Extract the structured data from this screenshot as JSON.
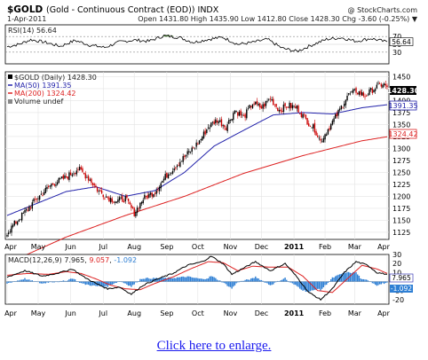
{
  "header": {
    "symbol": "$GOLD",
    "description": "(Gold - Continuous Contract (EOD)) INDX",
    "watermark": "@ StockCharts.com",
    "date": "1-Apr-2011",
    "quote": "Open 1431.80  High 1435.90  Low 1412.80  Close 1428.30  Chg -3.60 (-0.25%) ▼"
  },
  "link": {
    "text": "Click here to enlarge."
  },
  "colors": {
    "up": "#000000",
    "down": "#cc0000",
    "ma50": "#2222aa",
    "ma200": "#dd2222",
    "volume": "#888888",
    "rsi_fill": "#4f8a3a",
    "hist": "#2e7fd4",
    "signal": "#dd2222"
  },
  "chart_data": [
    {
      "type": "line",
      "panel": "rsi",
      "label": "RSI(14) 56.64",
      "ylim": [
        0,
        100
      ],
      "yticks": [
        "70",
        "50",
        "30"
      ],
      "levels": [
        70,
        30
      ],
      "last_value": "56.64",
      "series": [
        {
          "name": "RSI(14)",
          "x_index": [
            0,
            8,
            16,
            26,
            36,
            46,
            56,
            66,
            76,
            86,
            96,
            106,
            116,
            126,
            136,
            146,
            156,
            166,
            176,
            186,
            196,
            206,
            216,
            226,
            236,
            246,
            256
          ],
          "values": [
            44,
            50,
            62,
            55,
            45,
            60,
            48,
            42,
            56,
            61,
            58,
            72,
            68,
            55,
            63,
            68,
            50,
            55,
            63,
            40,
            32,
            48,
            63,
            67,
            58,
            65,
            56.64
          ]
        }
      ]
    },
    {
      "type": "candlestick",
      "panel": "price",
      "legend": [
        {
          "name": "$GOLD (Daily)",
          "value": "1428.30"
        },
        {
          "name": "MA(50)",
          "value": "1391.35"
        },
        {
          "name": "MA(200)",
          "value": "1324.42"
        },
        {
          "name": "Volume undef",
          "value": ""
        }
      ],
      "ylim": [
        1110,
        1460
      ],
      "yticks": [
        1125,
        1150,
        1175,
        1200,
        1225,
        1250,
        1275,
        1300,
        1325,
        1350,
        1375,
        1400,
        1425,
        1450
      ],
      "xticks": [
        {
          "label": "Apr",
          "i": 0
        },
        {
          "label": "May",
          "i": 21
        },
        {
          "label": "Jun",
          "i": 43
        },
        {
          "label": "Jul",
          "i": 65
        },
        {
          "label": "Aug",
          "i": 86
        },
        {
          "label": "Sep",
          "i": 108
        },
        {
          "label": "Oct",
          "i": 129
        },
        {
          "label": "Nov",
          "i": 151
        },
        {
          "label": "Dec",
          "i": 172
        },
        {
          "label": "2011",
          "i": 194,
          "bold": true
        },
        {
          "label": "Feb",
          "i": 215
        },
        {
          "label": "Mar",
          "i": 235
        },
        {
          "label": "Apr",
          "i": 257
        }
      ],
      "close_keypoints": {
        "x_index": [
          0,
          10,
          20,
          30,
          40,
          48,
          56,
          62,
          68,
          74,
          80,
          86,
          92,
          100,
          108,
          116,
          124,
          130,
          136,
          142,
          148,
          154,
          160,
          166,
          172,
          178,
          184,
          190,
          196,
          202,
          208,
          212,
          218,
          224,
          230,
          236,
          242,
          248,
          254,
          257
        ],
        "values": [
          1125,
          1160,
          1195,
          1225,
          1240,
          1258,
          1235,
          1210,
          1198,
          1190,
          1195,
          1165,
          1195,
          1210,
          1245,
          1270,
          1295,
          1315,
          1345,
          1360,
          1345,
          1380,
          1365,
          1395,
          1385,
          1405,
          1380,
          1390,
          1385,
          1360,
          1340,
          1315,
          1345,
          1375,
          1410,
          1420,
          1410,
          1425,
          1435,
          1428.3
        ]
      },
      "ma50_keypoints": {
        "x_index": [
          0,
          20,
          40,
          60,
          80,
          100,
          120,
          140,
          160,
          180,
          200,
          220,
          240,
          257
        ],
        "values": [
          1160,
          1185,
          1210,
          1220,
          1200,
          1212,
          1250,
          1305,
          1338,
          1370,
          1375,
          1372,
          1385,
          1391.35
        ]
      },
      "ma200_keypoints": {
        "x_index": [
          0,
          40,
          80,
          120,
          160,
          200,
          240,
          257
        ],
        "values": [
          1060,
          1115,
          1160,
          1200,
          1248,
          1285,
          1316,
          1324.42
        ]
      },
      "last_close_label": "1428.30",
      "ma50_label": "1391.35",
      "ma200_label": "1324.42"
    },
    {
      "type": "line",
      "panel": "macd",
      "label": "MACD(12,26,9)",
      "values_text": [
        "7.965",
        "9.057",
        "-1.092"
      ],
      "ylim": [
        -25,
        30
      ],
      "yticks": [
        30,
        20,
        10,
        -10,
        -20
      ],
      "series": [
        {
          "name": "MACD",
          "x_index": [
            0,
            12,
            24,
            36,
            44,
            52,
            60,
            68,
            76,
            84,
            92,
            102,
            112,
            122,
            132,
            138,
            146,
            152,
            160,
            168,
            178,
            188,
            196,
            204,
            212,
            220,
            228,
            236,
            244,
            250,
            257
          ],
          "values": [
            5,
            12,
            6,
            10,
            14,
            5,
            -2,
            -8,
            -6,
            -14,
            -4,
            3,
            9,
            18,
            22,
            28,
            20,
            8,
            15,
            22,
            12,
            20,
            5,
            -12,
            -20,
            -8,
            10,
            22,
            18,
            10,
            7.965
          ]
        },
        {
          "name": "Signal",
          "x_index": [
            0,
            14,
            28,
            40,
            50,
            60,
            70,
            80,
            90,
            100,
            112,
            124,
            136,
            146,
            156,
            166,
            178,
            190,
            200,
            210,
            220,
            230,
            240,
            250,
            257
          ],
          "values": [
            7,
            9,
            8,
            11,
            9,
            3,
            -4,
            -8,
            -9,
            -2,
            5,
            14,
            22,
            21,
            12,
            17,
            16,
            16,
            6,
            -10,
            -12,
            3,
            18,
            14,
            9.057
          ]
        }
      ],
      "histogram_last": -1.092
    }
  ]
}
